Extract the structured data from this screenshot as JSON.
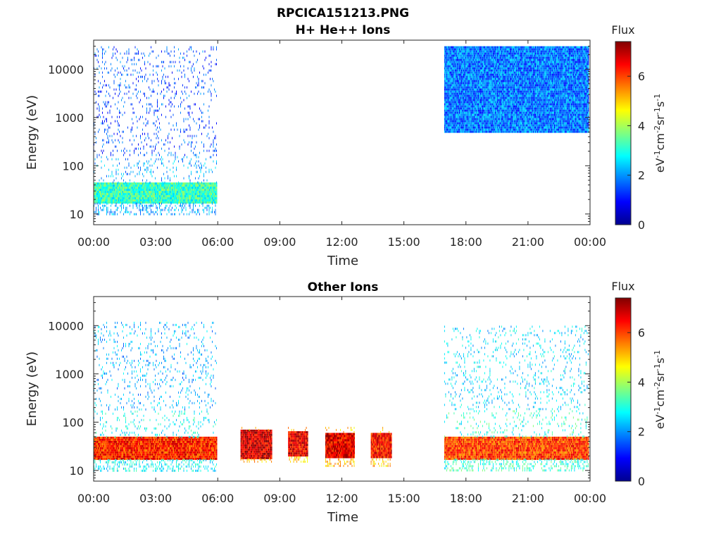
{
  "figure_title": "RPCICA151213.PNG",
  "colorbar": {
    "title": "Flux",
    "range": [
      0,
      7.4
    ],
    "ticks": [
      "0",
      "2",
      "4",
      "6"
    ],
    "colormap": "jet"
  },
  "chart_data": [
    {
      "type": "heatmap",
      "title": "H+ He++ Ions",
      "xlabel": "Time",
      "ylabel": "Energy (eV)",
      "xticks": [
        "00:00",
        "03:00",
        "06:00",
        "09:00",
        "12:00",
        "15:00",
        "18:00",
        "21:00",
        "00:00"
      ],
      "xlim_hours": [
        0,
        24
      ],
      "yscale": "log",
      "yticks": [
        "10",
        "100",
        "1000",
        "10000"
      ],
      "ylim": [
        6,
        40000
      ],
      "colorbar_label": "eV-1cm-2sr-1s-1",
      "data_intervals": [
        {
          "t_start_h": 0.0,
          "t_end_h": 5.95,
          "core_band_eV": [
            18,
            45
          ],
          "core_flux": 3.2,
          "sparse_range_eV": [
            10,
            30000
          ],
          "sparse_flux": 1.5
        },
        {
          "t_start_h": 16.95,
          "t_end_h": 23.9,
          "core_band_eV": [
            500,
            30000
          ],
          "core_flux": 1.8,
          "sparse_range_eV": [
            500,
            30000
          ],
          "sparse_flux": 1.8
        }
      ]
    },
    {
      "type": "heatmap",
      "title": "Other Ions",
      "xlabel": "Time",
      "ylabel": "Energy (eV)",
      "xticks": [
        "00:00",
        "03:00",
        "06:00",
        "09:00",
        "12:00",
        "15:00",
        "18:00",
        "21:00",
        "00:00"
      ],
      "xlim_hours": [
        0,
        24
      ],
      "yscale": "log",
      "yticks": [
        "10",
        "100",
        "1000",
        "10000"
      ],
      "ylim": [
        6,
        40000
      ],
      "colorbar_label": "eV-1cm-2sr-1s-1",
      "data_intervals": [
        {
          "t_start_h": 0.0,
          "t_end_h": 5.95,
          "core_band_eV": [
            18,
            50
          ],
          "core_flux": 6.2,
          "sparse_range_eV": [
            10,
            12000
          ],
          "sparse_flux": 2.2
        },
        {
          "t_start_h": 7.1,
          "t_end_h": 8.6,
          "core_band_eV": [
            18,
            70
          ],
          "core_flux": 6.8,
          "sparse_range_eV": [
            15,
            80
          ],
          "sparse_flux": 4.5
        },
        {
          "t_start_h": 9.4,
          "t_end_h": 10.35,
          "core_band_eV": [
            20,
            65
          ],
          "core_flux": 6.6,
          "sparse_range_eV": [
            15,
            80
          ],
          "sparse_flux": 4.5
        },
        {
          "t_start_h": 11.2,
          "t_end_h": 12.6,
          "core_band_eV": [
            18,
            60
          ],
          "core_flux": 6.6,
          "sparse_range_eV": [
            12,
            80
          ],
          "sparse_flux": 4.5
        },
        {
          "t_start_h": 13.4,
          "t_end_h": 14.4,
          "core_band_eV": [
            18,
            60
          ],
          "core_flux": 6.4,
          "sparse_range_eV": [
            12,
            80
          ],
          "sparse_flux": 4.5
        },
        {
          "t_start_h": 16.95,
          "t_end_h": 23.9,
          "core_band_eV": [
            18,
            50
          ],
          "core_flux": 6.0,
          "sparse_range_eV": [
            10,
            10000
          ],
          "sparse_flux": 2.5
        }
      ]
    }
  ]
}
